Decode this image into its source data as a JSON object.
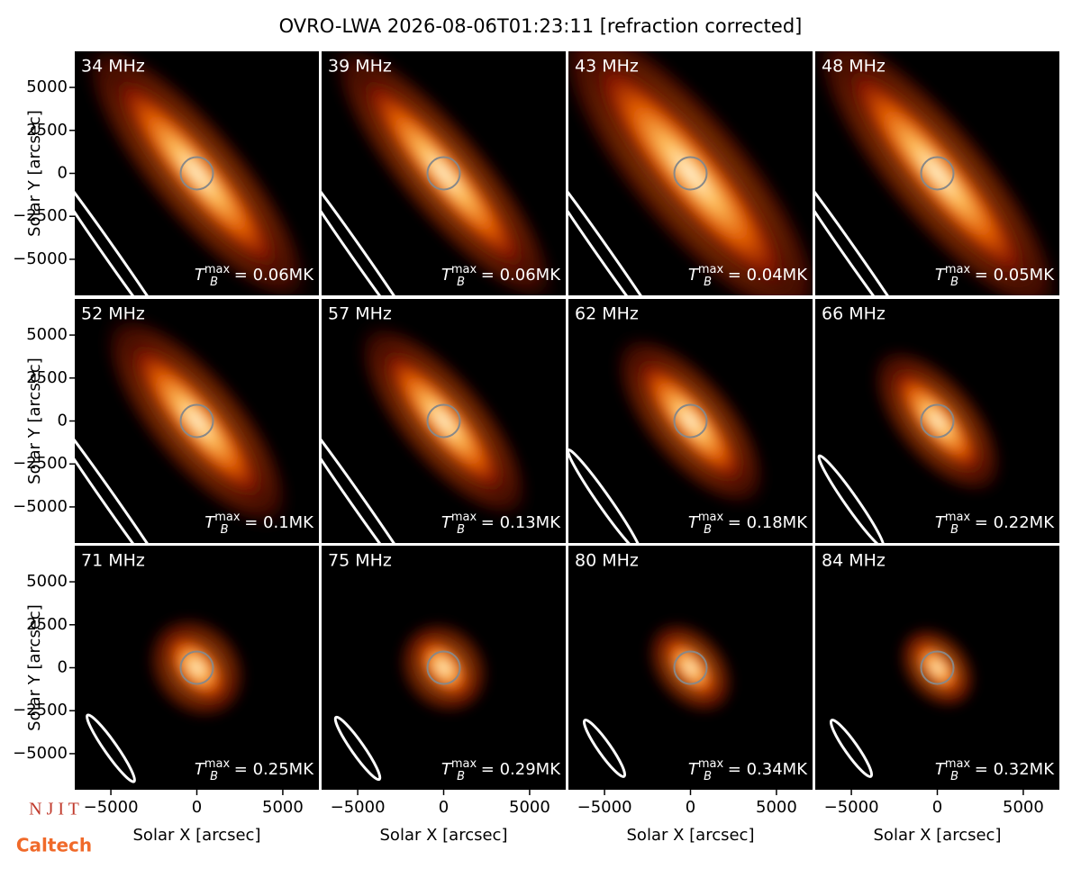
{
  "title": "OVRO-LWA 2026-08-06T01:23:11 [refraction corrected]",
  "logos": [
    "N J I T",
    "Caltech"
  ],
  "chart_data": [
    {
      "type": "image",
      "title": "34 MHz",
      "annotation": {
        "symbol": "T",
        "subscript": "B",
        "superscript": "max",
        "text": " = 0.06MK"
      },
      "xlim": [
        -7100,
        7100
      ],
      "ylim": [
        -7100,
        7100
      ],
      "ylabel": "Solar Y [arcsec]",
      "yticks": [
        {
          "value": -5000,
          "label": "−5000"
        },
        {
          "value": -2500,
          "label": "−2500"
        },
        0,
        2500,
        5000
      ]
    },
    {
      "type": "image",
      "title": "39 MHz",
      "annotation": {
        "symbol": "T",
        "subscript": "B",
        "superscript": "max",
        "text": " = 0.06MK"
      },
      "xlim": [
        -7100,
        7100
      ],
      "ylim": [
        -7100,
        7100
      ]
    },
    {
      "type": "image",
      "title": "43 MHz",
      "annotation": {
        "symbol": "T",
        "subscript": "B",
        "superscript": "max",
        "text": " = 0.04MK"
      },
      "xlim": [
        -7100,
        7100
      ],
      "ylim": [
        -7100,
        7100
      ]
    },
    {
      "type": "image",
      "title": "48 MHz",
      "annotation": {
        "symbol": "T",
        "subscript": "B",
        "superscript": "max",
        "text": " = 0.05MK"
      },
      "xlim": [
        -7100,
        7100
      ],
      "ylim": [
        -7100,
        7100
      ]
    },
    {
      "type": "image",
      "title": "52 MHz",
      "annotation": {
        "symbol": "T",
        "subscript": "B",
        "superscript": "max",
        "text": " = 0.1MK"
      },
      "xlim": [
        -7100,
        7100
      ],
      "ylim": [
        -7100,
        7100
      ],
      "ylabel": "Solar Y [arcsec]",
      "yticks": [
        {
          "value": -5000,
          "label": "−5000"
        },
        {
          "value": -2500,
          "label": "−2500"
        },
        0,
        2500,
        5000
      ]
    },
    {
      "type": "image",
      "title": "57 MHz",
      "annotation": {
        "symbol": "T",
        "subscript": "B",
        "superscript": "max",
        "text": " = 0.13MK"
      },
      "xlim": [
        -7100,
        7100
      ],
      "ylim": [
        -7100,
        7100
      ]
    },
    {
      "type": "image",
      "title": "62 MHz",
      "annotation": {
        "symbol": "T",
        "subscript": "B",
        "superscript": "max",
        "text": " = 0.18MK"
      },
      "xlim": [
        -7100,
        7100
      ],
      "ylim": [
        -7100,
        7100
      ]
    },
    {
      "type": "image",
      "title": "66 MHz",
      "annotation": {
        "symbol": "T",
        "subscript": "B",
        "superscript": "max",
        "text": " = 0.22MK"
      },
      "xlim": [
        -7100,
        7100
      ],
      "ylim": [
        -7100,
        7100
      ]
    },
    {
      "type": "image",
      "title": "71 MHz",
      "annotation": {
        "symbol": "T",
        "subscript": "B",
        "superscript": "max",
        "text": " = 0.25MK"
      },
      "xlim": [
        -7100,
        7100
      ],
      "ylim": [
        -7100,
        7100
      ],
      "ylabel": "Solar Y [arcsec]",
      "xlabel": "Solar X [arcsec]",
      "yticks": [
        {
          "value": -5000,
          "label": "−5000"
        },
        {
          "value": -2500,
          "label": "−2500"
        },
        0,
        2500,
        5000
      ],
      "xticks": [
        {
          "value": -5000,
          "label": "−5000"
        },
        0,
        5000
      ]
    },
    {
      "type": "image",
      "title": "75 MHz",
      "annotation": {
        "symbol": "T",
        "subscript": "B",
        "superscript": "max",
        "text": " = 0.29MK"
      },
      "xlim": [
        -7100,
        7100
      ],
      "ylim": [
        -7100,
        7100
      ],
      "xlabel": "Solar X [arcsec]",
      "xticks": [
        {
          "value": -5000,
          "label": "−5000"
        },
        0,
        5000
      ]
    },
    {
      "type": "image",
      "title": "80 MHz",
      "annotation": {
        "symbol": "T",
        "subscript": "B",
        "superscript": "max",
        "text": " = 0.34MK"
      },
      "xlim": [
        -7100,
        7100
      ],
      "ylim": [
        -7100,
        7100
      ],
      "xlabel": "Solar X [arcsec]",
      "xticks": [
        {
          "value": -5000,
          "label": "−5000"
        },
        0,
        5000
      ]
    },
    {
      "type": "image",
      "title": "84 MHz",
      "annotation": {
        "symbol": "T",
        "subscript": "B",
        "superscript": "max",
        "text": " = 0.32MK"
      },
      "xlim": [
        -7100,
        7100
      ],
      "ylim": [
        -7100,
        7100
      ],
      "xlabel": "Solar X [arcsec]",
      "xticks": [
        {
          "value": -5000,
          "label": "−5000"
        },
        0,
        5000
      ]
    }
  ]
}
